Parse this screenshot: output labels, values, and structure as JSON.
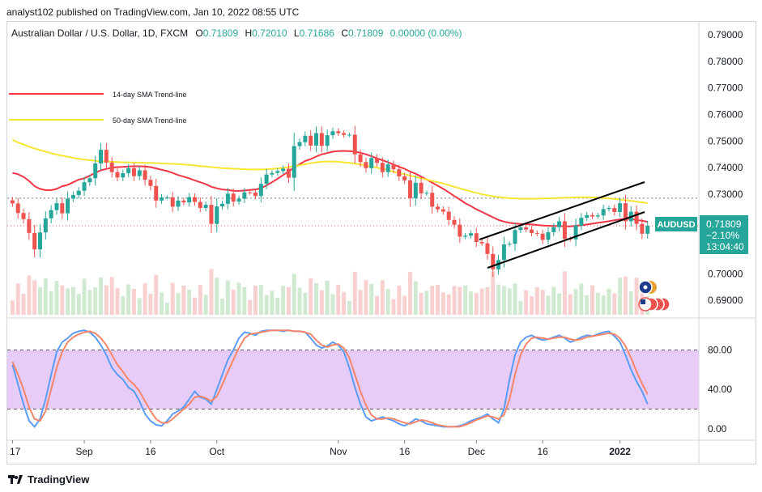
{
  "publisher": "analyst102 published on TradingView.com, Jan 10, 2022 08:55 UTC",
  "header": {
    "symbol": "Australian Dollar / U.S. Dollar, 1D, FXCM",
    "o_label": "O",
    "o_value": "0.71809",
    "h_label": "H",
    "h_value": "0.72010",
    "l_label": "L",
    "l_value": "0.71686",
    "c_label": "C",
    "c_value": "0.71809",
    "change": "0.00000 (0.00%)"
  },
  "legend": [
    {
      "name": "14-day SMA Trend-line",
      "color": "#f23645"
    },
    {
      "name": "50-day SMA Trend-line",
      "color": "#f7e533"
    }
  ],
  "price_badge": {
    "symbol": "AUDUSD",
    "price": "0.71809",
    "change": "−2.10%",
    "countdown": "13:04:40"
  },
  "footer_brand": "TradingView",
  "colors": {
    "up": "#26a69a",
    "down": "#ef5350",
    "stoch_k": "#5b9cf6",
    "stoch_d": "#f5866b",
    "stoch_band": "#e6ccf7",
    "sma14": "#f23645",
    "sma50": "#f7e533",
    "channel": "#000000"
  },
  "chart_data": [
    {
      "type": "candlestick",
      "x_labels": [
        "17",
        "Sep",
        "16",
        "Oct",
        "Nov",
        "16",
        "Dec",
        "16",
        "2022"
      ],
      "y_ticks": [
        "0.79000",
        "0.78000",
        "0.77000",
        "0.76000",
        "0.75000",
        "0.74000",
        "0.73000",
        "0.70000",
        "0.69000"
      ],
      "ylim": [
        0.6855,
        0.7955
      ],
      "close": [
        0.7265,
        0.7229,
        0.7206,
        0.7154,
        0.7092,
        0.7156,
        0.7209,
        0.724,
        0.7266,
        0.7228,
        0.7283,
        0.7297,
        0.7313,
        0.7345,
        0.736,
        0.7416,
        0.7467,
        0.7419,
        0.7383,
        0.7363,
        0.7379,
        0.7398,
        0.7368,
        0.739,
        0.7354,
        0.7331,
        0.7276,
        0.7288,
        0.7288,
        0.7253,
        0.7276,
        0.7269,
        0.7289,
        0.7271,
        0.7248,
        0.726,
        0.7188,
        0.7254,
        0.7264,
        0.7302,
        0.7272,
        0.7283,
        0.7307,
        0.7306,
        0.7293,
        0.7339,
        0.7374,
        0.738,
        0.7387,
        0.7396,
        0.7362,
        0.7481,
        0.7496,
        0.752,
        0.7483,
        0.753,
        0.7482,
        0.7522,
        0.7537,
        0.753,
        0.7523,
        0.7524,
        0.745,
        0.7421,
        0.7398,
        0.7436,
        0.7418,
        0.7383,
        0.7412,
        0.7394,
        0.7367,
        0.7352,
        0.7285,
        0.7343,
        0.7303,
        0.7305,
        0.7253,
        0.7243,
        0.7234,
        0.7203,
        0.7185,
        0.714,
        0.7144,
        0.7153,
        0.712,
        0.7115,
        0.7075,
        0.7017,
        0.7052,
        0.7111,
        0.7113,
        0.7165,
        0.7175,
        0.7167,
        0.7154,
        0.7151,
        0.7128,
        0.7157,
        0.7176,
        0.7198,
        0.7132,
        0.713,
        0.7182,
        0.7211,
        0.7221,
        0.7216,
        0.722,
        0.7244,
        0.7248,
        0.7233,
        0.7266,
        0.7198,
        0.7234,
        0.7188,
        0.7151,
        0.7181
      ]
    },
    {
      "type": "line",
      "series": [
        {
          "name": "14-day SMA Trend-line",
          "values": [
            0.738,
            0.7375,
            0.7365,
            0.735,
            0.733,
            0.732,
            0.7315,
            0.7315,
            0.732,
            0.733,
            0.7335,
            0.7345,
            0.7355,
            0.736,
            0.737,
            0.738,
            0.739,
            0.7395,
            0.74,
            0.7402,
            0.7403,
            0.7404,
            0.7405,
            0.7405,
            0.7404,
            0.7402,
            0.7397,
            0.7392,
            0.7387,
            0.738,
            0.7372,
            0.7366,
            0.736,
            0.7352,
            0.7345,
            0.7338,
            0.7328,
            0.7322,
            0.7318,
            0.7316,
            0.7313,
            0.7312,
            0.7314,
            0.7316,
            0.7318,
            0.7322,
            0.7333,
            0.7345,
            0.7358,
            0.7372,
            0.7385,
            0.74,
            0.7413,
            0.7425,
            0.7432,
            0.7442,
            0.745,
            0.7455,
            0.746,
            0.7462,
            0.7463,
            0.7462,
            0.746,
            0.7456,
            0.745,
            0.7443,
            0.7435,
            0.7428,
            0.742,
            0.7412,
            0.7403,
            0.7396,
            0.7385,
            0.7377,
            0.7366,
            0.7355,
            0.7343,
            0.7332,
            0.732,
            0.7307,
            0.7293,
            0.728,
            0.7266,
            0.7255,
            0.7243,
            0.7233,
            0.7223,
            0.7213,
            0.7203,
            0.7197,
            0.7192,
            0.719,
            0.7188,
            0.7187,
            0.7186,
            0.7184,
            0.7182,
            0.7181,
            0.718,
            0.718,
            0.7179,
            0.7179,
            0.7181,
            0.7183,
            0.7186,
            0.7189,
            0.7192,
            0.7195,
            0.7198,
            0.7202,
            0.7205,
            0.7207,
            0.7207,
            0.7203,
            0.72,
            0.7196
          ]
        },
        {
          "name": "50-day SMA Trend-line",
          "values": [
            0.7505,
            0.7495,
            0.7487,
            0.7479,
            0.7472,
            0.7466,
            0.746,
            0.7454,
            0.7449,
            0.7445,
            0.7441,
            0.7437,
            0.7433,
            0.743,
            0.7428,
            0.7426,
            0.7424,
            0.7423,
            0.7422,
            0.7421,
            0.742,
            0.742,
            0.7419,
            0.7419,
            0.7418,
            0.7418,
            0.7417,
            0.7416,
            0.7415,
            0.7414,
            0.7413,
            0.7412,
            0.741,
            0.7408,
            0.7406,
            0.7404,
            0.7402,
            0.74,
            0.7398,
            0.7397,
            0.7396,
            0.7395,
            0.7394,
            0.7393,
            0.7393,
            0.7393,
            0.7394,
            0.7395,
            0.7397,
            0.7399,
            0.7402,
            0.7405,
            0.7409,
            0.7413,
            0.7417,
            0.742,
            0.7422,
            0.7423,
            0.7423,
            0.7422,
            0.742,
            0.7418,
            0.7415,
            0.7412,
            0.7408,
            0.7404,
            0.74,
            0.7395,
            0.739,
            0.7385,
            0.738,
            0.7375,
            0.737,
            0.7365,
            0.736,
            0.7355,
            0.735,
            0.7345,
            0.734,
            0.7334,
            0.7328,
            0.7322,
            0.7316,
            0.731,
            0.7305,
            0.73,
            0.7296,
            0.7292,
            0.7289,
            0.7287,
            0.7285,
            0.7284,
            0.7283,
            0.7283,
            0.7283,
            0.7283,
            0.7284,
            0.7284,
            0.7285,
            0.7286,
            0.7287,
            0.7287,
            0.7288,
            0.7288,
            0.7288,
            0.7288,
            0.7287,
            0.7286,
            0.7284,
            0.7282,
            0.728,
            0.7278,
            0.7275,
            0.7272,
            0.7269,
            0.7266
          ]
        }
      ]
    },
    {
      "type": "line",
      "y_ticks": [
        "80.00",
        "40.00",
        "0.00"
      ],
      "ylim": [
        -10,
        110
      ],
      "levels": [
        80,
        20
      ],
      "series": [
        {
          "values": [
            65,
            45,
            25,
            8,
            2,
            10,
            30,
            55,
            78,
            88,
            92,
            97,
            99,
            100,
            98,
            93,
            85,
            75,
            62,
            55,
            50,
            42,
            38,
            28,
            15,
            8,
            4,
            3,
            8,
            15,
            18,
            22,
            30,
            38,
            32,
            30,
            25,
            40,
            55,
            70,
            80,
            92,
            98,
            97,
            95,
            99,
            100,
            100,
            100,
            99,
            100,
            99,
            99,
            98,
            92,
            85,
            82,
            84,
            88,
            85,
            78,
            62,
            42,
            25,
            12,
            8,
            10,
            12,
            10,
            8,
            5,
            3,
            6,
            10,
            8,
            5,
            4,
            3,
            2,
            2,
            2,
            3,
            5,
            8,
            10,
            12,
            15,
            10,
            6,
            20,
            50,
            75,
            88,
            93,
            95,
            92,
            90,
            91,
            93,
            95,
            92,
            88,
            90,
            93,
            95,
            94,
            96,
            98,
            99,
            94,
            88,
            75,
            60,
            48,
            38,
            25
          ]
        },
        {
          "values": [
            68,
            55,
            40,
            22,
            10,
            8,
            18,
            40,
            62,
            78,
            88,
            93,
            96,
            98,
            99,
            97,
            92,
            85,
            75,
            65,
            58,
            50,
            45,
            38,
            28,
            18,
            10,
            6,
            6,
            10,
            15,
            20,
            25,
            32,
            33,
            31,
            28,
            33,
            45,
            58,
            70,
            82,
            92,
            96,
            97,
            98,
            99,
            100,
            100,
            100,
            100,
            99,
            99,
            98,
            96,
            90,
            85,
            83,
            85,
            86,
            82,
            72,
            55,
            38,
            24,
            14,
            10,
            10,
            11,
            10,
            8,
            6,
            5,
            7,
            9,
            8,
            6,
            4,
            3,
            2,
            2,
            2,
            4,
            6,
            9,
            11,
            13,
            12,
            10,
            14,
            30,
            55,
            75,
            86,
            92,
            93,
            92,
            91,
            92,
            93,
            93,
            91,
            90,
            91,
            93,
            94,
            95,
            96,
            97,
            96,
            92,
            84,
            72,
            58,
            46,
            35
          ]
        }
      ]
    }
  ]
}
